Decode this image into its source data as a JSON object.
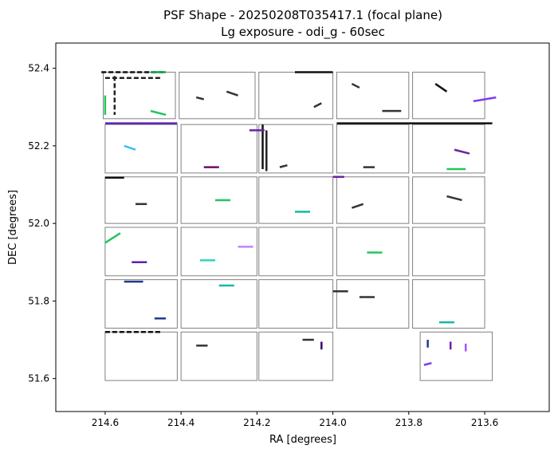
{
  "chart_data": {
    "type": "scatter",
    "title": "PSF Shape - 20250208T035417.1 (focal plane)",
    "subtitle": "Lg exposure - odi_g - 60sec",
    "xlabel": "RA [degrees]",
    "ylabel": "DEC [degrees]",
    "xlim": [
      214.73,
      213.43
    ],
    "ylim": [
      51.515,
      52.465
    ],
    "x_inverted": true,
    "xticks": [
      214.6,
      214.4,
      214.2,
      214.0,
      213.8,
      213.6
    ],
    "xtick_labels": [
      "214.6",
      "214.4",
      "214.2",
      "214.0",
      "213.8",
      "213.6"
    ],
    "yticks": [
      51.6,
      51.8,
      52.0,
      52.2,
      52.4
    ],
    "ytick_labels": [
      "51.6",
      "51.8",
      "52.0",
      "52.2",
      "52.4"
    ],
    "grid": false,
    "ccd_cells": [
      {
        "ra": [
          214.605,
          214.415
        ],
        "dec": [
          52.39,
          52.27
        ]
      },
      {
        "ra": [
          214.405,
          214.205
        ],
        "dec": [
          52.39,
          52.27
        ]
      },
      {
        "ra": [
          214.195,
          214.0
        ],
        "dec": [
          52.39,
          52.27
        ]
      },
      {
        "ra": [
          213.99,
          213.8
        ],
        "dec": [
          52.39,
          52.27
        ]
      },
      {
        "ra": [
          213.79,
          213.6
        ],
        "dec": [
          52.39,
          52.27
        ]
      },
      {
        "ra": [
          214.6,
          214.41
        ],
        "dec": [
          52.255,
          52.13
        ]
      },
      {
        "ra": [
          214.4,
          214.2
        ],
        "dec": [
          52.255,
          52.13
        ]
      },
      {
        "ra": [
          214.195,
          214.0
        ],
        "dec": [
          52.255,
          52.13
        ]
      },
      {
        "ra": [
          213.99,
          213.8
        ],
        "dec": [
          52.255,
          52.13
        ]
      },
      {
        "ra": [
          213.79,
          213.6
        ],
        "dec": [
          52.255,
          52.13
        ]
      },
      {
        "ra": [
          214.6,
          214.41
        ],
        "dec": [
          52.12,
          52.0
        ]
      },
      {
        "ra": [
          214.4,
          214.2
        ],
        "dec": [
          52.12,
          52.0
        ]
      },
      {
        "ra": [
          214.195,
          214.0
        ],
        "dec": [
          52.12,
          52.0
        ]
      },
      {
        "ra": [
          213.99,
          213.8
        ],
        "dec": [
          52.12,
          52.0
        ]
      },
      {
        "ra": [
          213.79,
          213.6
        ],
        "dec": [
          52.12,
          52.0
        ]
      },
      {
        "ra": [
          214.6,
          214.41
        ],
        "dec": [
          51.99,
          51.865
        ]
      },
      {
        "ra": [
          214.4,
          214.2
        ],
        "dec": [
          51.99,
          51.865
        ]
      },
      {
        "ra": [
          214.195,
          214.0
        ],
        "dec": [
          51.99,
          51.865
        ]
      },
      {
        "ra": [
          213.99,
          213.8
        ],
        "dec": [
          51.99,
          51.865
        ]
      },
      {
        "ra": [
          213.79,
          213.6
        ],
        "dec": [
          51.99,
          51.865
        ]
      },
      {
        "ra": [
          214.6,
          214.41
        ],
        "dec": [
          51.855,
          51.73
        ]
      },
      {
        "ra": [
          214.4,
          214.2
        ],
        "dec": [
          51.855,
          51.73
        ]
      },
      {
        "ra": [
          214.195,
          214.0
        ],
        "dec": [
          51.855,
          51.73
        ]
      },
      {
        "ra": [
          213.99,
          213.8
        ],
        "dec": [
          51.855,
          51.73
        ]
      },
      {
        "ra": [
          213.79,
          213.6
        ],
        "dec": [
          51.855,
          51.73
        ]
      },
      {
        "ra": [
          214.6,
          214.41
        ],
        "dec": [
          51.72,
          51.595
        ]
      },
      {
        "ra": [
          214.4,
          214.2
        ],
        "dec": [
          51.72,
          51.595
        ]
      },
      {
        "ra": [
          214.195,
          214.0
        ],
        "dec": [
          51.72,
          51.595
        ]
      },
      {
        "ra": [
          213.77,
          213.58
        ],
        "dec": [
          51.72,
          51.595
        ]
      }
    ],
    "streaks": [
      {
        "ra": [
          214.61,
          214.44
        ],
        "dec": [
          52.39,
          52.39
        ],
        "color": "#111111",
        "dash": true
      },
      {
        "ra": [
          214.6,
          214.45
        ],
        "dec": [
          52.375,
          52.375
        ],
        "color": "#222222",
        "dash": true
      },
      {
        "ra": [
          214.575,
          214.575
        ],
        "dec": [
          52.38,
          52.28
        ],
        "color": "#222222",
        "dash": true
      },
      {
        "ra": [
          214.6,
          214.6
        ],
        "dec": [
          52.33,
          52.28
        ],
        "color": "#22c55e",
        "dash": false
      },
      {
        "ra": [
          214.48,
          214.44
        ],
        "dec": [
          52.39,
          52.39
        ],
        "color": "#16a34a",
        "dash": false
      },
      {
        "ra": [
          214.1,
          214.0
        ],
        "dec": [
          52.39,
          52.39
        ],
        "color": "#111111",
        "dash": false
      },
      {
        "ra": [
          214.6,
          214.41
        ],
        "dec": [
          52.258,
          52.258
        ],
        "color": "#5b21b6",
        "dash": false
      },
      {
        "ra": [
          214.185,
          214.185
        ],
        "dec": [
          52.255,
          52.14
        ],
        "color": "#111111",
        "dash": false
      },
      {
        "ra": [
          214.175,
          214.175
        ],
        "dec": [
          52.24,
          52.135
        ],
        "color": "#222222",
        "dash": false
      },
      {
        "ra": [
          214.34,
          214.3
        ],
        "dec": [
          52.145,
          52.145
        ],
        "color": "#6b0f6b",
        "dash": false
      },
      {
        "ra": [
          214.22,
          214.18
        ],
        "dec": [
          52.24,
          52.24
        ],
        "color": "#6b21a8",
        "dash": false
      },
      {
        "ra": [
          213.99,
          213.58
        ],
        "dec": [
          52.258,
          52.258
        ],
        "color": "#111111",
        "dash": false
      },
      {
        "ra": [
          214.6,
          214.55
        ],
        "dec": [
          52.118,
          52.118
        ],
        "color": "#111111",
        "dash": false
      },
      {
        "ra": [
          214.0,
          213.97
        ],
        "dec": [
          52.12,
          52.12
        ],
        "color": "#6b21a8",
        "dash": false
      },
      {
        "ra": [
          214.6,
          214.56
        ],
        "dec": [
          51.95,
          51.975
        ],
        "color": "#22c55e",
        "dash": false
      },
      {
        "ra": [
          214.55,
          214.5
        ],
        "dec": [
          51.85,
          51.85
        ],
        "color": "#1e3a8a",
        "dash": false
      },
      {
        "ra": [
          214.6,
          214.45
        ],
        "dec": [
          51.72,
          51.72
        ],
        "color": "#111111",
        "dash": true
      },
      {
        "ra": [
          214.47,
          214.44
        ],
        "dec": [
          51.755,
          51.755
        ],
        "color": "#1e3a8a",
        "dash": false
      },
      {
        "ra": [
          214.03,
          214.03
        ],
        "dec": [
          51.695,
          51.675
        ],
        "color": "#3b0764",
        "dash": false
      },
      {
        "ra": [
          213.76,
          213.74
        ],
        "dec": [
          51.635,
          51.64
        ],
        "color": "#7c3aed",
        "dash": false
      },
      {
        "ra": [
          213.63,
          213.57
        ],
        "dec": [
          52.315,
          52.325
        ],
        "color": "#7c3aed",
        "dash": false
      },
      {
        "ra": [
          213.73,
          213.7
        ],
        "dec": [
          52.36,
          52.34
        ],
        "color": "#111111",
        "dash": false
      },
      {
        "ra": [
          214.36,
          214.34
        ],
        "dec": [
          52.325,
          52.32
        ],
        "color": "#333333",
        "dash": false
      },
      {
        "ra": [
          214.28,
          214.25
        ],
        "dec": [
          52.34,
          52.33
        ],
        "color": "#333333",
        "dash": false
      },
      {
        "ra": [
          214.05,
          214.03
        ],
        "dec": [
          52.3,
          52.31
        ],
        "color": "#333333",
        "dash": false
      },
      {
        "ra": [
          213.95,
          213.93
        ],
        "dec": [
          52.36,
          52.35
        ],
        "color": "#333333",
        "dash": false
      },
      {
        "ra": [
          214.48,
          214.44
        ],
        "dec": [
          52.29,
          52.28
        ],
        "color": "#22c55e",
        "dash": false
      },
      {
        "ra": [
          213.87,
          213.82
        ],
        "dec": [
          52.29,
          52.29
        ],
        "color": "#333333",
        "dash": false
      },
      {
        "ra": [
          214.55,
          214.52
        ],
        "dec": [
          52.2,
          52.19
        ],
        "color": "#38bdf8",
        "dash": false
      },
      {
        "ra": [
          214.14,
          214.12
        ],
        "dec": [
          52.145,
          52.15
        ],
        "color": "#333333",
        "dash": false
      },
      {
        "ra": [
          213.92,
          213.89
        ],
        "dec": [
          52.145,
          52.145
        ],
        "color": "#333333",
        "dash": false
      },
      {
        "ra": [
          213.68,
          213.64
        ],
        "dec": [
          52.19,
          52.18
        ],
        "color": "#6b21a8",
        "dash": false
      },
      {
        "ra": [
          213.7,
          213.65
        ],
        "dec": [
          52.14,
          52.14
        ],
        "color": "#22c55e",
        "dash": false
      },
      {
        "ra": [
          214.52,
          214.49
        ],
        "dec": [
          52.05,
          52.05
        ],
        "color": "#333333",
        "dash": false
      },
      {
        "ra": [
          214.31,
          214.27
        ],
        "dec": [
          52.06,
          52.06
        ],
        "color": "#22c55e",
        "dash": false
      },
      {
        "ra": [
          214.1,
          214.06
        ],
        "dec": [
          52.03,
          52.03
        ],
        "color": "#14b8a6",
        "dash": false
      },
      {
        "ra": [
          213.95,
          213.92
        ],
        "dec": [
          52.04,
          52.05
        ],
        "color": "#333333",
        "dash": false
      },
      {
        "ra": [
          213.7,
          213.66
        ],
        "dec": [
          52.07,
          52.06
        ],
        "color": "#333333",
        "dash": false
      },
      {
        "ra": [
          214.53,
          214.49
        ],
        "dec": [
          51.9,
          51.9
        ],
        "color": "#5b21b6",
        "dash": false
      },
      {
        "ra": [
          214.35,
          214.31
        ],
        "dec": [
          51.905,
          51.905
        ],
        "color": "#2dd4bf",
        "dash": false
      },
      {
        "ra": [
          214.25,
          214.21
        ],
        "dec": [
          51.94,
          51.94
        ],
        "color": "#c084fc",
        "dash": false
      },
      {
        "ra": [
          213.91,
          213.87
        ],
        "dec": [
          51.925,
          51.925
        ],
        "color": "#22c55e",
        "dash": false
      },
      {
        "ra": [
          214.0,
          213.96
        ],
        "dec": [
          51.825,
          51.825
        ],
        "color": "#333333",
        "dash": false
      },
      {
        "ra": [
          213.93,
          213.89
        ],
        "dec": [
          51.81,
          51.81
        ],
        "color": "#333333",
        "dash": false
      },
      {
        "ra": [
          214.3,
          214.26
        ],
        "dec": [
          51.84,
          51.84
        ],
        "color": "#14b8a6",
        "dash": false
      },
      {
        "ra": [
          213.72,
          213.68
        ],
        "dec": [
          51.745,
          51.745
        ],
        "color": "#14b8a6",
        "dash": false
      },
      {
        "ra": [
          214.36,
          214.33
        ],
        "dec": [
          51.685,
          51.685
        ],
        "color": "#333333",
        "dash": false
      },
      {
        "ra": [
          214.08,
          214.05
        ],
        "dec": [
          51.7,
          51.7
        ],
        "color": "#333333",
        "dash": false
      },
      {
        "ra": [
          213.69,
          213.69
        ],
        "dec": [
          51.695,
          51.675
        ],
        "color": "#6b21a8",
        "dash": false
      },
      {
        "ra": [
          213.65,
          213.65
        ],
        "dec": [
          51.69,
          51.67
        ],
        "color": "#a855f7",
        "dash": false
      },
      {
        "ra": [
          213.75,
          213.75
        ],
        "dec": [
          51.7,
          51.68
        ],
        "color": "#1e3a8a",
        "dash": false
      }
    ]
  }
}
